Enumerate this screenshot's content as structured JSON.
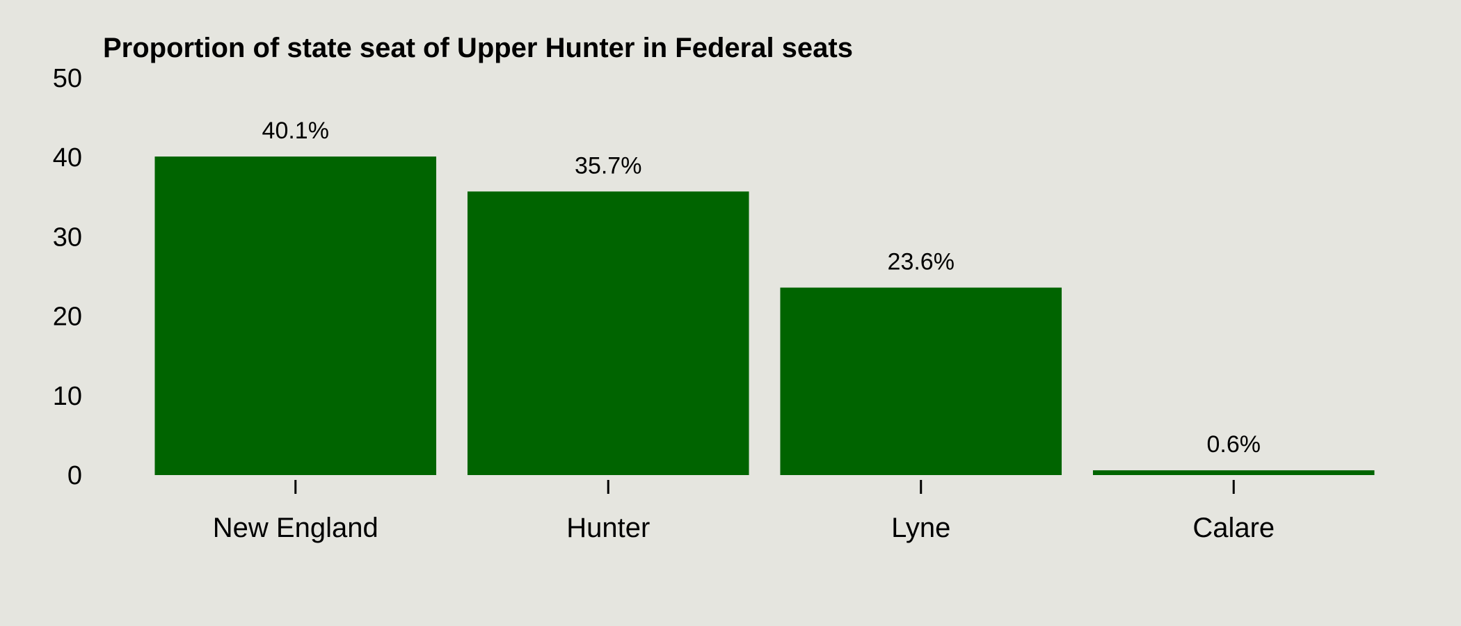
{
  "chart_data": {
    "type": "bar",
    "title": "Proportion of state seat of Upper Hunter in Federal seats",
    "xlabel": "",
    "ylabel": "",
    "categories": [
      "New England",
      "Hunter",
      "Lyne",
      "Calare"
    ],
    "values": [
      40.1,
      35.7,
      23.6,
      0.6
    ],
    "data_labels": [
      "40.1%",
      "35.7%",
      "23.6%",
      "0.6%"
    ],
    "ylim": [
      0,
      50
    ],
    "y_ticks": [
      0,
      10,
      20,
      30,
      40,
      50
    ],
    "y_tick_labels": [
      "0",
      "10",
      "20",
      "30",
      "40",
      "50"
    ],
    "grid": false,
    "legend": "none",
    "colors": {
      "bar": "#006400",
      "background": "#e5e5df",
      "text": "#000000"
    }
  }
}
